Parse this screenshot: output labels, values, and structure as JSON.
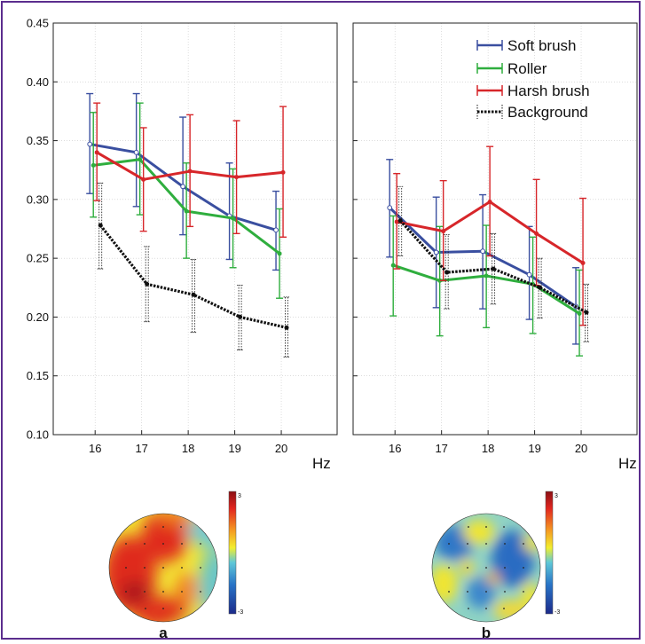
{
  "chart_data": [
    {
      "type": "line",
      "panel": "a",
      "x": [
        16,
        17,
        18,
        19,
        20
      ],
      "xlabel": "Hz",
      "ylabel": "",
      "ylim": [
        0.1,
        0.45
      ],
      "yticks": [
        "0.10",
        "0.15",
        "0.20",
        "0.25",
        "0.30",
        "0.35",
        "0.40",
        "0.45"
      ],
      "grid": true,
      "series": [
        {
          "name": "Soft brush",
          "color": "#3a4fa0",
          "values": [
            0.347,
            0.34,
            0.311,
            0.286,
            0.274
          ],
          "err_low": [
            0.305,
            0.294,
            0.27,
            0.249,
            0.24
          ],
          "err_high": [
            0.39,
            0.39,
            0.37,
            0.331,
            0.307
          ]
        },
        {
          "name": "Roller",
          "color": "#2fae3e",
          "values": [
            0.329,
            0.334,
            0.29,
            0.284,
            0.254
          ],
          "err_low": [
            0.285,
            0.287,
            0.25,
            0.242,
            0.216
          ],
          "err_high": [
            0.374,
            0.382,
            0.331,
            0.326,
            0.292
          ]
        },
        {
          "name": "Harsh brush",
          "color": "#d7262a",
          "values": [
            0.34,
            0.317,
            0.324,
            0.319,
            0.323
          ],
          "err_low": [
            0.299,
            0.273,
            0.277,
            0.271,
            0.268
          ],
          "err_high": [
            0.382,
            0.361,
            0.372,
            0.367,
            0.379
          ]
        },
        {
          "name": "Background",
          "color": "#111111",
          "values": [
            0.278,
            0.228,
            0.219,
            0.2,
            0.191
          ],
          "err_low": [
            0.241,
            0.196,
            0.187,
            0.172,
            0.166
          ],
          "err_high": [
            0.314,
            0.26,
            0.249,
            0.227,
            0.217
          ]
        }
      ]
    },
    {
      "type": "line",
      "panel": "b",
      "x": [
        16,
        17,
        18,
        19,
        20
      ],
      "xlabel": "Hz",
      "ylabel": "",
      "ylim": [
        0.1,
        0.45
      ],
      "grid": true,
      "legend_position": "top-right",
      "series": [
        {
          "name": "Soft brush",
          "color": "#3a4fa0",
          "values": [
            0.293,
            0.255,
            0.256,
            0.236,
            0.209
          ],
          "err_low": [
            0.251,
            0.208,
            0.207,
            0.198,
            0.177
          ],
          "err_high": [
            0.334,
            0.302,
            0.304,
            0.277,
            0.242
          ]
        },
        {
          "name": "Roller",
          "color": "#2fae3e",
          "values": [
            0.244,
            0.231,
            0.235,
            0.228,
            0.203
          ],
          "err_low": [
            0.201,
            0.184,
            0.191,
            0.186,
            0.167
          ],
          "err_high": [
            0.286,
            0.277,
            0.278,
            0.268,
            0.24
          ]
        },
        {
          "name": "Harsh brush",
          "color": "#d7262a",
          "values": [
            0.281,
            0.273,
            0.298,
            0.271,
            0.246
          ],
          "err_low": [
            0.241,
            0.231,
            0.252,
            0.227,
            0.193
          ],
          "err_high": [
            0.322,
            0.316,
            0.345,
            0.317,
            0.301
          ]
        },
        {
          "name": "Background",
          "color": "#111111",
          "values": [
            0.282,
            0.238,
            0.241,
            0.225,
            0.204
          ],
          "err_low": [
            0.252,
            0.207,
            0.211,
            0.199,
            0.179
          ],
          "err_high": [
            0.311,
            0.27,
            0.271,
            0.25,
            0.228
          ]
        }
      ]
    }
  ],
  "colorbar": {
    "max_label": "3",
    "min_label": "-3"
  },
  "panels": {
    "a_label": "a",
    "b_label": "b"
  }
}
